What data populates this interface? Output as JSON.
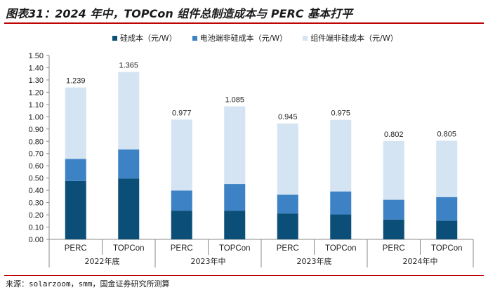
{
  "figure": {
    "title": "图表31：2024 年中，TOPCon 组件总制造成本与 PERC 基本打平",
    "source": "来源：solarzoom，smm，国金证券研究所测算"
  },
  "chart_data": {
    "type": "bar",
    "stacked": true,
    "categories": [
      "PERC",
      "TOPCon",
      "PERC",
      "TOPCon",
      "PERC",
      "TOPCon",
      "PERC",
      "TOPCon"
    ],
    "groups": [
      {
        "label": "2022年底",
        "categories": [
          0,
          1
        ]
      },
      {
        "label": "2023年中",
        "categories": [
          2,
          3
        ]
      },
      {
        "label": "2023年底",
        "categories": [
          4,
          5
        ]
      },
      {
        "label": "2024年中",
        "categories": [
          6,
          7
        ]
      }
    ],
    "series": [
      {
        "name": "硅成本（元/W）",
        "color": "#0b4f78",
        "values": [
          0.476,
          0.497,
          0.234,
          0.234,
          0.211,
          0.203,
          0.162,
          0.153
        ]
      },
      {
        "name": "电池端非硅成本（元/W）",
        "color": "#3c82c4",
        "values": [
          0.18,
          0.236,
          0.164,
          0.218,
          0.153,
          0.188,
          0.161,
          0.192
        ]
      },
      {
        "name": "组件端非硅成本（元/W）",
        "color": "#d4e4f3",
        "values": [
          0.583,
          0.632,
          0.579,
          0.633,
          0.581,
          0.584,
          0.479,
          0.46
        ]
      }
    ],
    "totals": [
      "1.239",
      "1.365",
      "0.977",
      "1.085",
      "0.945",
      "0.975",
      "0.802",
      "0.805"
    ],
    "yticks": [
      "0.00",
      "0.10",
      "0.20",
      "0.30",
      "0.40",
      "0.50",
      "0.60",
      "0.70",
      "0.80",
      "0.90",
      "1.00",
      "1.10",
      "1.20",
      "1.30",
      "1.40",
      "1.50"
    ],
    "ylim": [
      0,
      1.5
    ],
    "grid": false,
    "legend": "top"
  }
}
